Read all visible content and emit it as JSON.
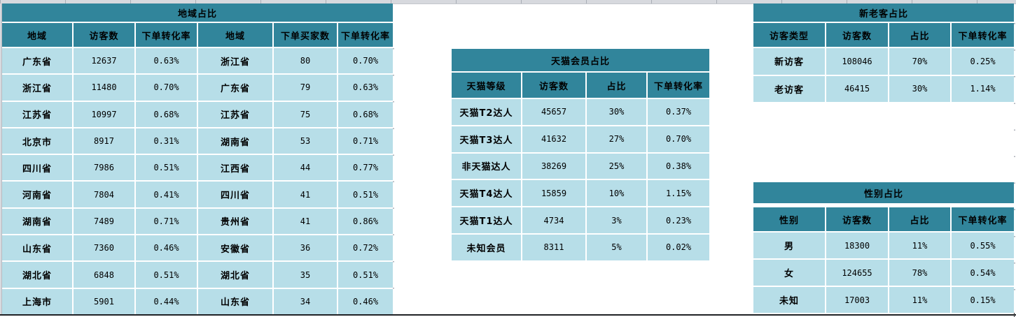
{
  "colors": {
    "header_teal": "#31859b",
    "cell_blue": "#b7dee8",
    "grid_grey": "#d7d9de",
    "grid_line": "#a9aeb6",
    "bottom_rule": "#1f2124"
  },
  "tables": {
    "region": {
      "title": "地域占比",
      "headers": [
        "地域",
        "访客数",
        "下单转化率",
        "地域",
        "下单买家数",
        "下单转化率"
      ],
      "label_cols": [
        0,
        3
      ],
      "rows": [
        [
          "广东省",
          "12637",
          "0.63%",
          "浙江省",
          "80",
          "0.70%"
        ],
        [
          "浙江省",
          "11480",
          "0.70%",
          "广东省",
          "79",
          "0.63%"
        ],
        [
          "江苏省",
          "10997",
          "0.68%",
          "江苏省",
          "75",
          "0.68%"
        ],
        [
          "北京市",
          "8917",
          "0.31%",
          "湖南省",
          "53",
          "0.71%"
        ],
        [
          "四川省",
          "7986",
          "0.51%",
          "江西省",
          "44",
          "0.77%"
        ],
        [
          "河南省",
          "7804",
          "0.41%",
          "四川省",
          "41",
          "0.51%"
        ],
        [
          "湖南省",
          "7489",
          "0.71%",
          "贵州省",
          "41",
          "0.86%"
        ],
        [
          "山东省",
          "7360",
          "0.46%",
          "安徽省",
          "36",
          "0.72%"
        ],
        [
          "湖北省",
          "6848",
          "0.51%",
          "湖北省",
          "35",
          "0.51%"
        ],
        [
          "上海市",
          "5901",
          "0.44%",
          "山东省",
          "34",
          "0.46%"
        ]
      ]
    },
    "tmall": {
      "title": "天猫会员占比",
      "headers": [
        "天猫等级",
        "访客数",
        "占比",
        "下单转化率"
      ],
      "label_cols": [
        0
      ],
      "rows": [
        [
          "天猫T2达人",
          "45657",
          "30%",
          "0.37%"
        ],
        [
          "天猫T3达人",
          "41632",
          "27%",
          "0.70%"
        ],
        [
          "非天猫达人",
          "38269",
          "25%",
          "0.38%"
        ],
        [
          "天猫T4达人",
          "15859",
          "10%",
          "1.15%"
        ],
        [
          "天猫T1达人",
          "4734",
          "3%",
          "0.23%"
        ],
        [
          "未知会员",
          "8311",
          "5%",
          "0.02%"
        ]
      ]
    },
    "visitor_type": {
      "title": "新老客占比",
      "headers": [
        "访客类型",
        "访客数",
        "占比",
        "下单转化率"
      ],
      "label_cols": [
        0
      ],
      "rows": [
        [
          "新访客",
          "108046",
          "70%",
          "0.25%"
        ],
        [
          "老访客",
          "46415",
          "30%",
          "1.14%"
        ]
      ]
    },
    "gender": {
      "title": "性别占比",
      "headers": [
        "性别",
        "访客数",
        "占比",
        "下单转化率"
      ],
      "label_cols": [
        0
      ],
      "rows": [
        [
          "男",
          "18300",
          "11%",
          "0.55%"
        ],
        [
          "女",
          "124655",
          "78%",
          "0.54%"
        ],
        [
          "未知",
          "17003",
          "11%",
          "0.15%"
        ]
      ]
    }
  }
}
